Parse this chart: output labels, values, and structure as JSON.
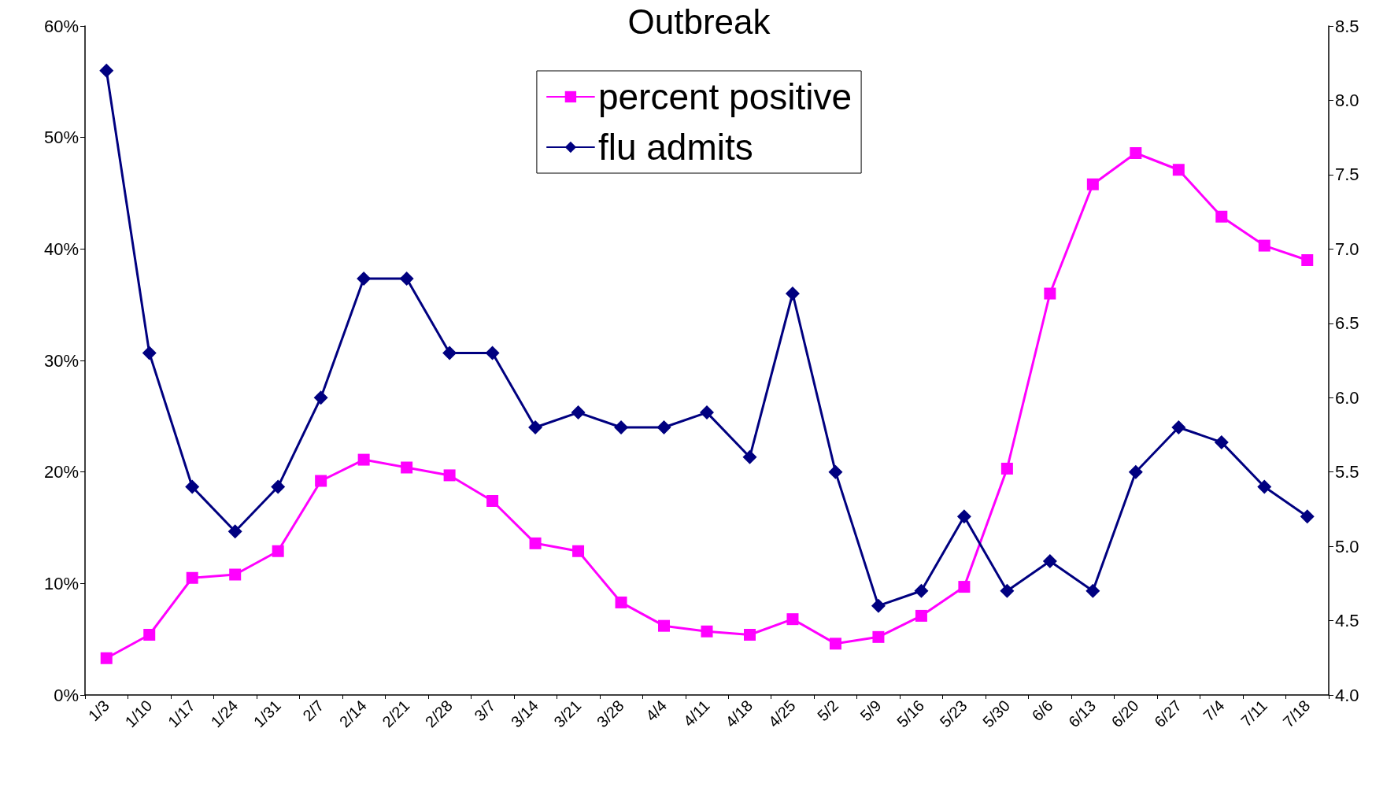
{
  "chart_data": {
    "type": "line",
    "title": "Outbreak",
    "categories": [
      "1/3",
      "1/10",
      "1/17",
      "1/24",
      "1/31",
      "2/7",
      "2/14",
      "2/21",
      "2/28",
      "3/7",
      "3/14",
      "3/21",
      "3/28",
      "4/4",
      "4/11",
      "4/18",
      "4/25",
      "5/2",
      "5/9",
      "5/16",
      "5/23",
      "5/30",
      "6/6",
      "6/13",
      "6/20",
      "6/27",
      "7/4",
      "7/11",
      "7/18"
    ],
    "series": [
      {
        "name": "percent positive",
        "color": "#ff00ff",
        "marker": "square",
        "values": [
          3.3,
          5.4,
          10.5,
          10.8,
          12.9,
          19.2,
          21.1,
          20.4,
          19.7,
          17.4,
          13.6,
          12.9,
          8.3,
          6.2,
          5.7,
          5.4,
          6.8,
          4.6,
          5.2,
          7.1,
          9.7,
          20.3,
          36,
          45.8,
          48.6,
          47.1,
          42.9,
          40.3,
          39.0
        ]
      },
      {
        "name": "flu admits",
        "color": "#000080",
        "marker": "diamond",
        "axis": "y2",
        "values": [
          8.2,
          6.3,
          5.4,
          5.1,
          5.4,
          6.0,
          6.8,
          6.8,
          6.3,
          6.3,
          5.8,
          5.9,
          5.8,
          5.8,
          5.9,
          5.6,
          6.7,
          5.5,
          4.6,
          4.7,
          5.2,
          4.7,
          4.9,
          4.7,
          5.5,
          5.8,
          5.7,
          5.4,
          5.2
        ]
      }
    ],
    "ylim": [
      0,
      60
    ],
    "yticks": [
      {
        "value": 0,
        "label": "0%"
      },
      {
        "value": 10,
        "label": "10%"
      },
      {
        "value": 20,
        "label": "20%"
      },
      {
        "value": 30,
        "label": "30%"
      },
      {
        "value": 40,
        "label": "40%"
      },
      {
        "value": 50,
        "label": "50%"
      },
      {
        "value": 60,
        "label": "60%"
      }
    ],
    "y2lim": [
      4,
      8.5
    ],
    "y2ticks": [
      {
        "value": 4,
        "label": "4.0"
      },
      {
        "value": 4.5,
        "label": "4.5"
      },
      {
        "value": 5,
        "label": "5.0"
      },
      {
        "value": 5.5,
        "label": "5.5"
      },
      {
        "value": 6,
        "label": "6.0"
      },
      {
        "value": 6.5,
        "label": "6.5"
      },
      {
        "value": 7,
        "label": "7.0"
      },
      {
        "value": 7.5,
        "label": "7.5"
      },
      {
        "value": 8,
        "label": "8.0"
      },
      {
        "value": 8.5,
        "label": "8.5"
      }
    ],
    "grid": false,
    "legend": "top",
    "line_style": "solid"
  }
}
